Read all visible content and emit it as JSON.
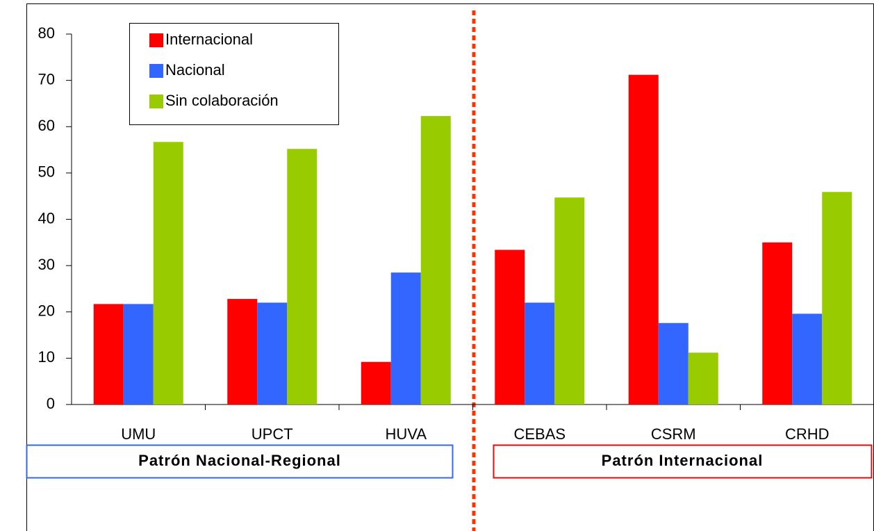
{
  "chart_data": {
    "type": "bar",
    "categories": [
      "UMU",
      "UPCT",
      "HUVA",
      "CEBAS",
      "CSRM",
      "CRHD"
    ],
    "series": [
      {
        "name": "Internacional",
        "color": "#ff0000",
        "values": [
          21.7,
          22.8,
          9.2,
          33.4,
          71.2,
          35.0
        ]
      },
      {
        "name": "Nacional",
        "color": "#3366ff",
        "values": [
          21.7,
          22.0,
          28.5,
          22.0,
          17.6,
          19.6
        ]
      },
      {
        "name": "Sin colaboración",
        "color": "#99cc00",
        "values": [
          56.7,
          55.2,
          62.3,
          44.7,
          11.2,
          45.9
        ]
      }
    ],
    "ylim": [
      0,
      80
    ],
    "yticks": [
      0,
      10,
      20,
      30,
      40,
      50,
      60,
      70,
      80
    ],
    "grid": false,
    "legend": "top-left",
    "annotations": [
      "Patrón Nacional-Regional",
      "Patrón Internacional"
    ]
  }
}
